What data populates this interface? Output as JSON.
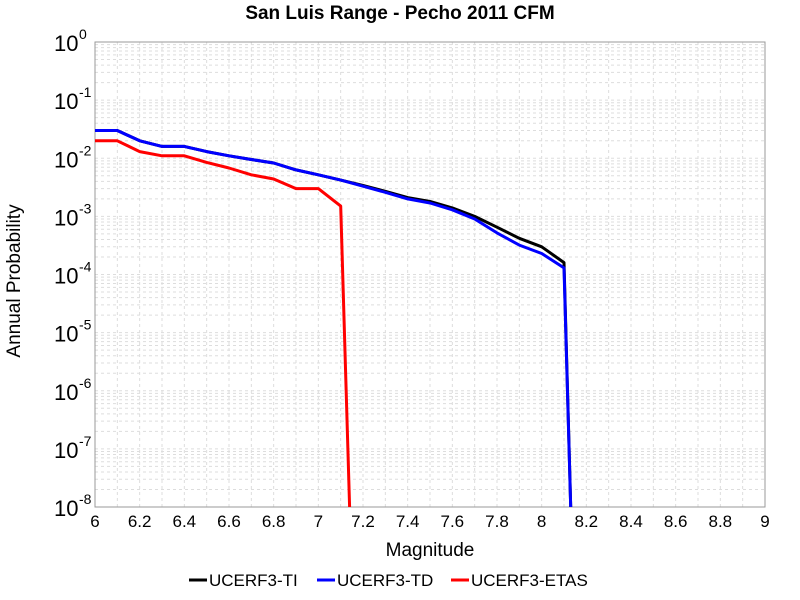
{
  "chart_data": {
    "type": "line",
    "title": "San Luis Range - Pecho 2011 CFM",
    "xlabel": "Magnitude",
    "ylabel": "Annual Probability",
    "xlim": [
      6,
      9
    ],
    "ylim": [
      1e-08,
      1
    ],
    "y_scale": "log",
    "grid": true,
    "legend_position": "bottom",
    "x_ticks": [
      "6",
      "6.2",
      "6.4",
      "6.6",
      "6.8",
      "7",
      "7.2",
      "7.4",
      "7.6",
      "7.8",
      "8",
      "8.2",
      "8.4",
      "8.6",
      "8.8",
      "9"
    ],
    "y_ticks": [
      {
        "base": "10",
        "exp": "0"
      },
      {
        "base": "10",
        "exp": "-1"
      },
      {
        "base": "10",
        "exp": "-2"
      },
      {
        "base": "10",
        "exp": "-3"
      },
      {
        "base": "10",
        "exp": "-4"
      },
      {
        "base": "10",
        "exp": "-5"
      },
      {
        "base": "10",
        "exp": "-6"
      },
      {
        "base": "10",
        "exp": "-7"
      },
      {
        "base": "10",
        "exp": "-8"
      }
    ],
    "series": [
      {
        "name": "UCERF3-TI",
        "color": "#000000",
        "x": [
          6.0,
          6.1,
          6.2,
          6.3,
          6.4,
          6.5,
          6.6,
          6.7,
          6.8,
          6.9,
          7.0,
          7.1,
          7.2,
          7.3,
          7.4,
          7.5,
          7.6,
          7.7,
          7.8,
          7.9,
          8.0,
          8.1,
          8.13
        ],
        "y": [
          0.03,
          0.03,
          0.02,
          0.016,
          0.016,
          0.013,
          0.011,
          0.0095,
          0.0083,
          0.0063,
          0.0052,
          0.0042,
          0.0034,
          0.0027,
          0.0021,
          0.0018,
          0.0014,
          0.001,
          0.00065,
          0.00042,
          0.0003,
          0.00016,
          1e-08
        ]
      },
      {
        "name": "UCERF3-TD",
        "color": "#0000ff",
        "x": [
          6.0,
          6.1,
          6.2,
          6.3,
          6.4,
          6.5,
          6.6,
          6.7,
          6.8,
          6.9,
          7.0,
          7.1,
          7.2,
          7.3,
          7.4,
          7.5,
          7.6,
          7.7,
          7.8,
          7.9,
          8.0,
          8.1,
          8.13
        ],
        "y": [
          0.03,
          0.03,
          0.02,
          0.016,
          0.016,
          0.013,
          0.011,
          0.0095,
          0.0083,
          0.0063,
          0.0052,
          0.0042,
          0.0033,
          0.0026,
          0.002,
          0.0017,
          0.0013,
          0.0009,
          0.00052,
          0.00032,
          0.00023,
          0.00013,
          1e-08
        ]
      },
      {
        "name": "UCERF3-ETAS",
        "color": "#ff0000",
        "x": [
          6.0,
          6.1,
          6.2,
          6.3,
          6.4,
          6.5,
          6.6,
          6.7,
          6.8,
          6.9,
          7.0,
          7.1,
          7.14
        ],
        "y": [
          0.02,
          0.02,
          0.013,
          0.011,
          0.011,
          0.0085,
          0.0068,
          0.0052,
          0.0044,
          0.003,
          0.003,
          0.0015,
          1e-08
        ]
      }
    ]
  }
}
